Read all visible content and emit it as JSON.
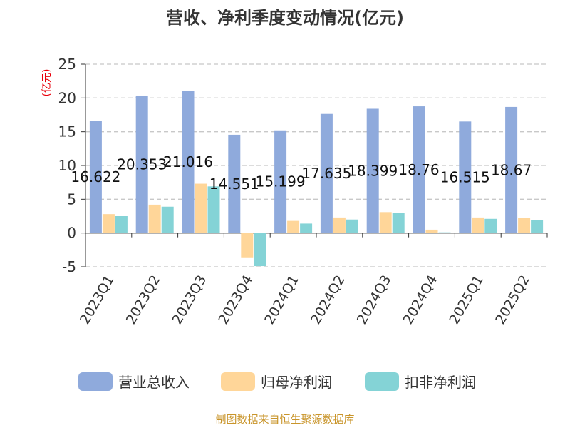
{
  "chart_data": {
    "type": "bar",
    "title": "营收、净利季度变动情况(亿元)",
    "ylabel": "(亿元)",
    "xlabel": "",
    "ylim": [
      -5,
      25
    ],
    "yticks": [
      -5,
      0,
      5,
      10,
      15,
      20,
      25
    ],
    "grid": true,
    "legend_position": "bottom",
    "categories": [
      "2023Q1",
      "2023Q2",
      "2023Q3",
      "2023Q4",
      "2024Q1",
      "2024Q2",
      "2024Q3",
      "2024Q4",
      "2025Q1",
      "2025Q2"
    ],
    "series": [
      {
        "name": "营业总收入",
        "color": "#8faadc",
        "values": [
          16.622,
          20.353,
          21.016,
          14.551,
          15.199,
          17.635,
          18.399,
          18.76,
          16.515,
          18.67
        ],
        "labels": [
          "16.622",
          "20.353",
          "21.016",
          "14.551",
          "15.199",
          "17.635",
          "18.399",
          "18.76",
          "16.515",
          "18.67"
        ]
      },
      {
        "name": "归母净利润",
        "color": "#ffd699",
        "values": [
          2.8,
          4.2,
          7.3,
          -3.6,
          1.8,
          2.3,
          3.1,
          0.5,
          2.3,
          2.2
        ]
      },
      {
        "name": "扣非净利润",
        "color": "#84d3d6",
        "values": [
          2.5,
          3.9,
          6.9,
          -4.9,
          1.4,
          2.0,
          3.0,
          0.1,
          2.1,
          1.9
        ]
      }
    ],
    "source": "制图数据来自恒生聚源数据库"
  }
}
